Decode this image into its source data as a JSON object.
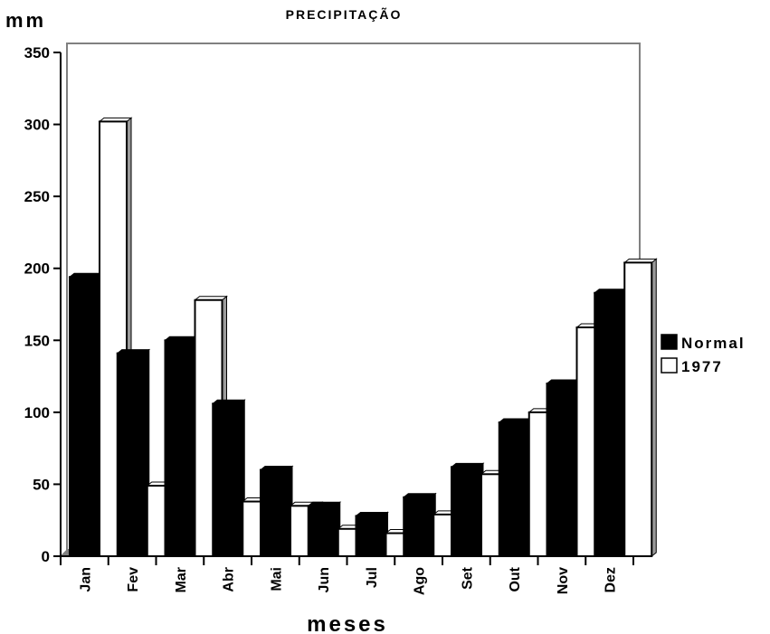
{
  "chart_data": {
    "type": "bar",
    "title": "PRECIPITAÇÃO",
    "ylabel": "mm",
    "xlabel": "meses",
    "categories": [
      "Jan",
      "Fev",
      "Mar",
      "Abr",
      "Mai",
      "Jun",
      "Jul",
      "Ago",
      "Set",
      "Out",
      "Nov",
      "Dez"
    ],
    "series": [
      {
        "name": "Normal",
        "color": "#000000",
        "values": [
          194,
          141,
          150,
          106,
          60,
          35,
          28,
          41,
          62,
          93,
          120,
          183
        ]
      },
      {
        "name": "1977",
        "color": "#ffffff",
        "values": [
          302,
          49,
          178,
          38,
          35,
          19,
          16,
          29,
          57,
          100,
          159,
          204
        ]
      }
    ],
    "ylim": [
      0,
      350
    ],
    "yticks": [
      0,
      50,
      100,
      150,
      200,
      250,
      300,
      350
    ],
    "legend": "right",
    "grid": false
  }
}
